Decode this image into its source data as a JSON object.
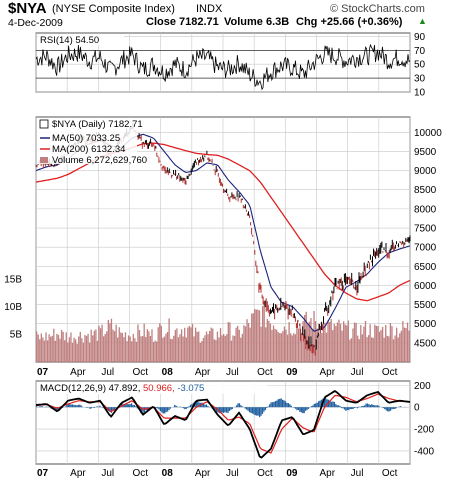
{
  "header": {
    "symbol": "$NYA",
    "name": "(NYSE Composite Index)",
    "exchange": "INDX",
    "date": "4-Dec-2009",
    "close_label": "Close 7182.71",
    "volume_label": "Volume 6.3B",
    "chg_label": "Chg +25.66 (+0.36%)",
    "chg_arrow": "▲",
    "brand": "© StockCharts.com"
  },
  "colors": {
    "price": "#000000",
    "ma50": "#1a237e",
    "ma200": "#e02020",
    "volume": "#c08080",
    "macd": "#000000",
    "signal": "#e02020",
    "histogram": "#1f5f9f",
    "grid": "#c8c8c8"
  },
  "chart_data": [
    {
      "type": "line",
      "panel": "rsi",
      "label": "RSI(14) 54.50",
      "ylim": [
        10,
        95
      ],
      "y_ticks": [
        90,
        70,
        50,
        30,
        10
      ],
      "reference_lines": [
        70,
        30
      ],
      "x": [
        "2007-01",
        "2007-02",
        "2007-03",
        "2007-04",
        "2007-05",
        "2007-06",
        "2007-07",
        "2007-08",
        "2007-09",
        "2007-10",
        "2007-11",
        "2007-12",
        "2008-01",
        "2008-02",
        "2008-03",
        "2008-04",
        "2008-05",
        "2008-06",
        "2008-07",
        "2008-08",
        "2008-09",
        "2008-10",
        "2008-11",
        "2008-12",
        "2009-01",
        "2009-02",
        "2009-03",
        "2009-04",
        "2009-05",
        "2009-06",
        "2009-07",
        "2009-08",
        "2009-09",
        "2009-10",
        "2009-11",
        "2009-12"
      ],
      "series": [
        {
          "name": "RSI(14)",
          "values": [
            58,
            62,
            45,
            63,
            66,
            55,
            60,
            40,
            55,
            64,
            42,
            50,
            38,
            50,
            42,
            58,
            60,
            45,
            42,
            52,
            35,
            25,
            40,
            48,
            45,
            35,
            52,
            65,
            62,
            55,
            60,
            62,
            68,
            55,
            60,
            54.5
          ]
        }
      ]
    },
    {
      "type": "line",
      "panel": "price",
      "ylim": [
        4000,
        10400
      ],
      "y_ticks": [
        10000,
        9500,
        9000,
        8500,
        8000,
        7500,
        7000,
        6500,
        6000,
        5500,
        5000,
        4500
      ],
      "x": [
        "2007-01",
        "2007-02",
        "2007-03",
        "2007-04",
        "2007-05",
        "2007-06",
        "2007-07",
        "2007-08",
        "2007-09",
        "2007-10",
        "2007-11",
        "2007-12",
        "2008-01",
        "2008-02",
        "2008-03",
        "2008-04",
        "2008-05",
        "2008-06",
        "2008-07",
        "2008-08",
        "2008-09",
        "2008-10",
        "2008-11",
        "2008-12",
        "2009-01",
        "2009-02",
        "2009-03",
        "2009-04",
        "2009-05",
        "2009-06",
        "2009-07",
        "2009-08",
        "2009-09",
        "2009-10",
        "2009-11",
        "2009-12"
      ],
      "series": [
        {
          "name": "$NYA (Daily) 7182.71",
          "values": [
            9150,
            9200,
            9150,
            9550,
            9800,
            9800,
            9900,
            9400,
            9800,
            10150,
            9700,
            9700,
            9000,
            8900,
            8700,
            9250,
            9400,
            8900,
            8300,
            8350,
            7800,
            5800,
            5300,
            5450,
            5300,
            4700,
            4300,
            5200,
            6000,
            6100,
            6000,
            6450,
            6900,
            6900,
            7100,
            7182.71
          ]
        },
        {
          "name": "MA(50) 7033.25",
          "values": [
            9000,
            9100,
            9150,
            9300,
            9550,
            9700,
            9800,
            9650,
            9600,
            9850,
            9950,
            9850,
            9500,
            9150,
            8950,
            9000,
            9200,
            9150,
            8750,
            8450,
            8100,
            6900,
            5950,
            5550,
            5450,
            5150,
            4800,
            4900,
            5400,
            5950,
            6100,
            6300,
            6600,
            6850,
            6950,
            7033.25
          ]
        },
        {
          "name": "MA(200) 6132.34",
          "values": [
            8700,
            8750,
            8800,
            8900,
            9050,
            9200,
            9350,
            9450,
            9500,
            9600,
            9700,
            9720,
            9680,
            9600,
            9520,
            9450,
            9420,
            9400,
            9300,
            9150,
            9000,
            8700,
            8300,
            7900,
            7500,
            7100,
            6700,
            6300,
            6000,
            5800,
            5650,
            5600,
            5700,
            5800,
            6000,
            6132.34
          ]
        }
      ]
    },
    {
      "type": "bar",
      "panel": "volume",
      "label": "Volume 6,272,629,760",
      "y_ticks": [
        "15B",
        "10B",
        "5B"
      ],
      "ylim": [
        0,
        20
      ],
      "x": [
        "2007-01",
        "2007-02",
        "2007-03",
        "2007-04",
        "2007-05",
        "2007-06",
        "2007-07",
        "2007-08",
        "2007-09",
        "2007-10",
        "2007-11",
        "2007-12",
        "2008-01",
        "2008-02",
        "2008-03",
        "2008-04",
        "2008-05",
        "2008-06",
        "2008-07",
        "2008-08",
        "2008-09",
        "2008-10",
        "2008-11",
        "2008-12",
        "2009-01",
        "2009-02",
        "2009-03",
        "2009-04",
        "2009-05",
        "2009-06",
        "2009-07",
        "2009-08",
        "2009-09",
        "2009-10",
        "2009-11",
        "2009-12"
      ],
      "series": [
        {
          "name": "Volume",
          "values": [
            4.5,
            4.6,
            5.2,
            4.6,
            4.8,
            5.0,
            5.2,
            6.5,
            5.0,
            5.0,
            5.6,
            4.8,
            6.5,
            5.6,
            6.3,
            5.0,
            4.8,
            5.0,
            5.8,
            5.0,
            7.0,
            9.0,
            7.5,
            6.5,
            6.5,
            7.0,
            7.5,
            6.6,
            6.3,
            6.0,
            5.5,
            6.0,
            5.5,
            6.0,
            5.8,
            6.27
          ]
        }
      ]
    },
    {
      "type": "line",
      "panel": "macd",
      "label": "MACD(12,26,9) 47.892, 50.966, -3.075",
      "ylim": [
        -520,
        240
      ],
      "y_ticks": [
        200,
        0,
        -200,
        -400
      ],
      "x": [
        "2007-01",
        "2007-02",
        "2007-03",
        "2007-04",
        "2007-05",
        "2007-06",
        "2007-07",
        "2007-08",
        "2007-09",
        "2007-10",
        "2007-11",
        "2007-12",
        "2008-01",
        "2008-02",
        "2008-03",
        "2008-04",
        "2008-05",
        "2008-06",
        "2008-07",
        "2008-08",
        "2008-09",
        "2008-10",
        "2008-11",
        "2008-12",
        "2009-01",
        "2009-02",
        "2009-03",
        "2009-04",
        "2009-05",
        "2009-06",
        "2009-07",
        "2009-08",
        "2009-09",
        "2009-10",
        "2009-11",
        "2009-12"
      ],
      "series": [
        {
          "name": "MACD",
          "values": [
            20,
            30,
            -40,
            60,
            80,
            40,
            60,
            -90,
            40,
            90,
            -70,
            10,
            -160,
            -80,
            -120,
            60,
            70,
            -70,
            -170,
            -50,
            -200,
            -470,
            -380,
            -120,
            -90,
            -250,
            -210,
            90,
            150,
            60,
            40,
            110,
            140,
            40,
            60,
            47.892
          ]
        },
        {
          "name": "Signal",
          "values": [
            15,
            25,
            -10,
            30,
            60,
            50,
            50,
            -40,
            10,
            60,
            -20,
            0,
            -100,
            -100,
            -100,
            0,
            50,
            -20,
            -120,
            -90,
            -150,
            -380,
            -420,
            -200,
            -100,
            -190,
            -230,
            0,
            110,
            90,
            50,
            80,
            120,
            80,
            55,
            50.966
          ]
        },
        {
          "name": "Histogram",
          "values": [
            5,
            5,
            -30,
            30,
            20,
            -10,
            10,
            -50,
            30,
            30,
            -50,
            10,
            -60,
            20,
            -20,
            60,
            20,
            -50,
            -50,
            40,
            -50,
            -90,
            40,
            80,
            10,
            -60,
            20,
            90,
            40,
            -30,
            -10,
            30,
            20,
            -40,
            5,
            -3.075
          ]
        }
      ]
    }
  ],
  "axis": {
    "x_tick_labels": [
      "07",
      "Apr",
      "Jul",
      "Oct",
      "08",
      "Apr",
      "Jul",
      "Oct",
      "09",
      "Apr",
      "Jul",
      "Oct"
    ],
    "year_labels": [
      "07",
      "08",
      "09"
    ]
  }
}
